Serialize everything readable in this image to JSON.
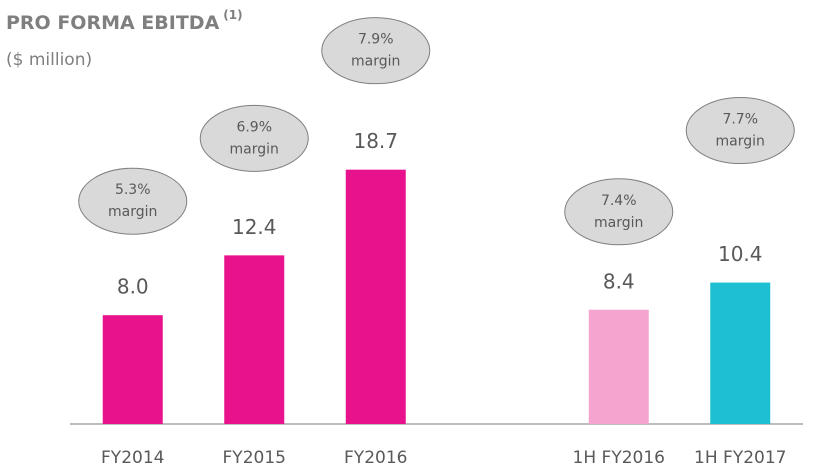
{
  "chart_data": {
    "type": "bar",
    "title": "PRO FORMA EBITDA",
    "title_note": "(1)",
    "subtitle": "($ million)",
    "categories": [
      "FY2014",
      "FY2015",
      "FY2016",
      null,
      "1H FY2016",
      "1H FY2017"
    ],
    "values": [
      8.0,
      12.4,
      18.7,
      null,
      8.4,
      10.4
    ],
    "value_labels": [
      "8.0",
      "12.4",
      "18.7",
      null,
      "8.4",
      "10.4"
    ],
    "colors": [
      "#e8128c",
      "#e8128c",
      "#e8128c",
      null,
      "#f5a3cf",
      "#1fbfd3"
    ],
    "annotations": [
      "5.3%",
      "6.9%",
      "7.9%",
      null,
      "7.4%",
      "7.7%"
    ],
    "annotation_text": "margin",
    "ylim": [
      0,
      30
    ]
  }
}
